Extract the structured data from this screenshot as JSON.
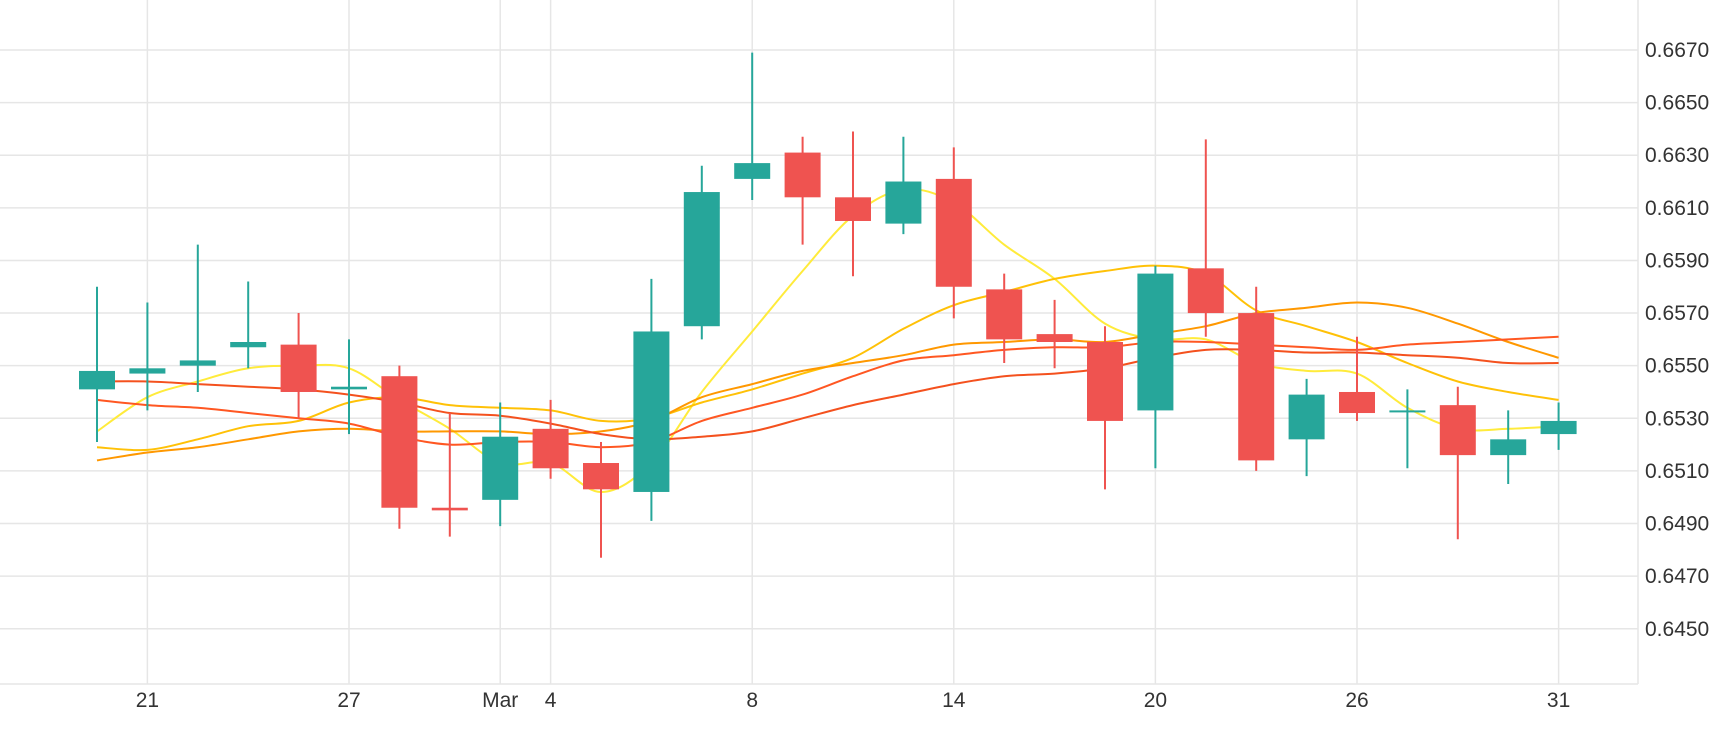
{
  "chart_data": {
    "type": "candlestick",
    "title": "",
    "xlabel": "",
    "ylabel": "",
    "ylim": [
      0.6429,
      0.6689
    ],
    "y_ticks": [
      "0.6450",
      "0.6470",
      "0.6490",
      "0.6510",
      "0.6530",
      "0.6550",
      "0.6570",
      "0.6590",
      "0.6610",
      "0.6630",
      "0.6650",
      "0.6670"
    ],
    "x_ticks": [
      {
        "label": "21",
        "index": 1
      },
      {
        "label": "27",
        "index": 5
      },
      {
        "label": "Mar",
        "index": 8
      },
      {
        "label": "4",
        "index": 9
      },
      {
        "label": "8",
        "index": 13
      },
      {
        "label": "14",
        "index": 17
      },
      {
        "label": "20",
        "index": 21
      },
      {
        "label": "26",
        "index": 25
      },
      {
        "label": "31",
        "index": 29
      }
    ],
    "grid": true,
    "colors": {
      "up": "#26a69a",
      "down": "#ef5350",
      "grid": "#e6e6e6"
    },
    "candles": [
      {
        "o": 0.6541,
        "h": 0.658,
        "l": 0.6521,
        "c": 0.6548
      },
      {
        "o": 0.6547,
        "h": 0.6574,
        "l": 0.6533,
        "c": 0.6549
      },
      {
        "o": 0.655,
        "h": 0.6596,
        "l": 0.654,
        "c": 0.6552
      },
      {
        "o": 0.6557,
        "h": 0.6582,
        "l": 0.6549,
        "c": 0.6559
      },
      {
        "o": 0.6558,
        "h": 0.657,
        "l": 0.653,
        "c": 0.654
      },
      {
        "o": 0.6541,
        "h": 0.656,
        "l": 0.6524,
        "c": 0.6542
      },
      {
        "o": 0.6546,
        "h": 0.655,
        "l": 0.6488,
        "c": 0.6496
      },
      {
        "o": 0.6496,
        "h": 0.6532,
        "l": 0.6485,
        "c": 0.6495
      },
      {
        "o": 0.6499,
        "h": 0.6536,
        "l": 0.6489,
        "c": 0.6523
      },
      {
        "o": 0.6526,
        "h": 0.6537,
        "l": 0.6507,
        "c": 0.6511
      },
      {
        "o": 0.6513,
        "h": 0.6521,
        "l": 0.6477,
        "c": 0.6503
      },
      {
        "o": 0.6502,
        "h": 0.6583,
        "l": 0.6491,
        "c": 0.6563
      },
      {
        "o": 0.6565,
        "h": 0.6626,
        "l": 0.656,
        "c": 0.6616
      },
      {
        "o": 0.6621,
        "h": 0.6669,
        "l": 0.6613,
        "c": 0.6627
      },
      {
        "o": 0.6631,
        "h": 0.6637,
        "l": 0.6596,
        "c": 0.6614
      },
      {
        "o": 0.6614,
        "h": 0.6639,
        "l": 0.6584,
        "c": 0.6605
      },
      {
        "o": 0.6604,
        "h": 0.6637,
        "l": 0.66,
        "c": 0.662
      },
      {
        "o": 0.6621,
        "h": 0.6633,
        "l": 0.6568,
        "c": 0.658
      },
      {
        "o": 0.6579,
        "h": 0.6585,
        "l": 0.6551,
        "c": 0.656
      },
      {
        "o": 0.6562,
        "h": 0.6575,
        "l": 0.6549,
        "c": 0.6559
      },
      {
        "o": 0.6559,
        "h": 0.6565,
        "l": 0.6503,
        "c": 0.6529
      },
      {
        "o": 0.6533,
        "h": 0.6588,
        "l": 0.6511,
        "c": 0.6585
      },
      {
        "o": 0.6587,
        "h": 0.6636,
        "l": 0.6561,
        "c": 0.657
      },
      {
        "o": 0.657,
        "h": 0.658,
        "l": 0.651,
        "c": 0.6514
      },
      {
        "o": 0.6522,
        "h": 0.6545,
        "l": 0.6508,
        "c": 0.6539
      },
      {
        "o": 0.654,
        "h": 0.6561,
        "l": 0.6529,
        "c": 0.6532
      },
      {
        "o": 0.6533,
        "h": 0.6541,
        "l": 0.6511,
        "c": 0.6533
      },
      {
        "o": 0.6535,
        "h": 0.6542,
        "l": 0.6484,
        "c": 0.6516
      },
      {
        "o": 0.6516,
        "h": 0.6533,
        "l": 0.6505,
        "c": 0.6522
      },
      {
        "o": 0.6524,
        "h": 0.6536,
        "l": 0.6518,
        "c": 0.6529
      }
    ],
    "series": [
      {
        "color": "#ffeb3b",
        "values": [
          0.6525,
          0.6538,
          0.6544,
          0.6549,
          0.655,
          0.6549,
          0.6537,
          0.6526,
          0.6513,
          0.6513,
          0.6502,
          0.6513,
          0.654,
          0.6563,
          0.6586,
          0.6607,
          0.6617,
          0.6612,
          0.6596,
          0.6583,
          0.6566,
          0.656,
          0.656,
          0.6551,
          0.6548,
          0.6547,
          0.6534,
          0.6526,
          0.6526,
          0.6527
        ]
      },
      {
        "color": "#ffc107",
        "values": [
          0.6519,
          0.6518,
          0.6522,
          0.6527,
          0.6529,
          0.6536,
          0.6538,
          0.6535,
          0.6534,
          0.6533,
          0.6529,
          0.653,
          0.6536,
          0.6541,
          0.6547,
          0.6553,
          0.6564,
          0.6573,
          0.6578,
          0.6583,
          0.6586,
          0.6588,
          0.6585,
          0.6571,
          0.6565,
          0.6559,
          0.6551,
          0.6544,
          0.654,
          0.6537
        ]
      },
      {
        "color": "#ff9800",
        "values": [
          0.6514,
          0.6517,
          0.6519,
          0.6522,
          0.6525,
          0.6526,
          0.6525,
          0.6525,
          0.6525,
          0.6524,
          0.6525,
          0.6529,
          0.6538,
          0.6543,
          0.6548,
          0.6551,
          0.6554,
          0.6558,
          0.6559,
          0.656,
          0.6559,
          0.6562,
          0.6565,
          0.657,
          0.6572,
          0.6574,
          0.6572,
          0.6566,
          0.6559,
          0.6553
        ]
      },
      {
        "color": "#ff5722",
        "values": [
          0.6537,
          0.6535,
          0.6534,
          0.6532,
          0.653,
          0.6528,
          0.6523,
          0.652,
          0.6521,
          0.6521,
          0.6519,
          0.6521,
          0.6529,
          0.6534,
          0.6539,
          0.6546,
          0.6552,
          0.6554,
          0.6556,
          0.6557,
          0.6557,
          0.6559,
          0.6559,
          0.6558,
          0.6557,
          0.6556,
          0.6558,
          0.6559,
          0.656,
          0.6561
        ]
      },
      {
        "color": "#f4511e",
        "values": [
          0.6544,
          0.6544,
          0.6543,
          0.6542,
          0.6541,
          0.6539,
          0.6536,
          0.6532,
          0.6531,
          0.6528,
          0.6524,
          0.6522,
          0.6523,
          0.6525,
          0.653,
          0.6535,
          0.6539,
          0.6543,
          0.6546,
          0.6547,
          0.6549,
          0.6553,
          0.6556,
          0.6556,
          0.6555,
          0.6555,
          0.6554,
          0.6553,
          0.6551,
          0.6551
        ]
      }
    ]
  }
}
